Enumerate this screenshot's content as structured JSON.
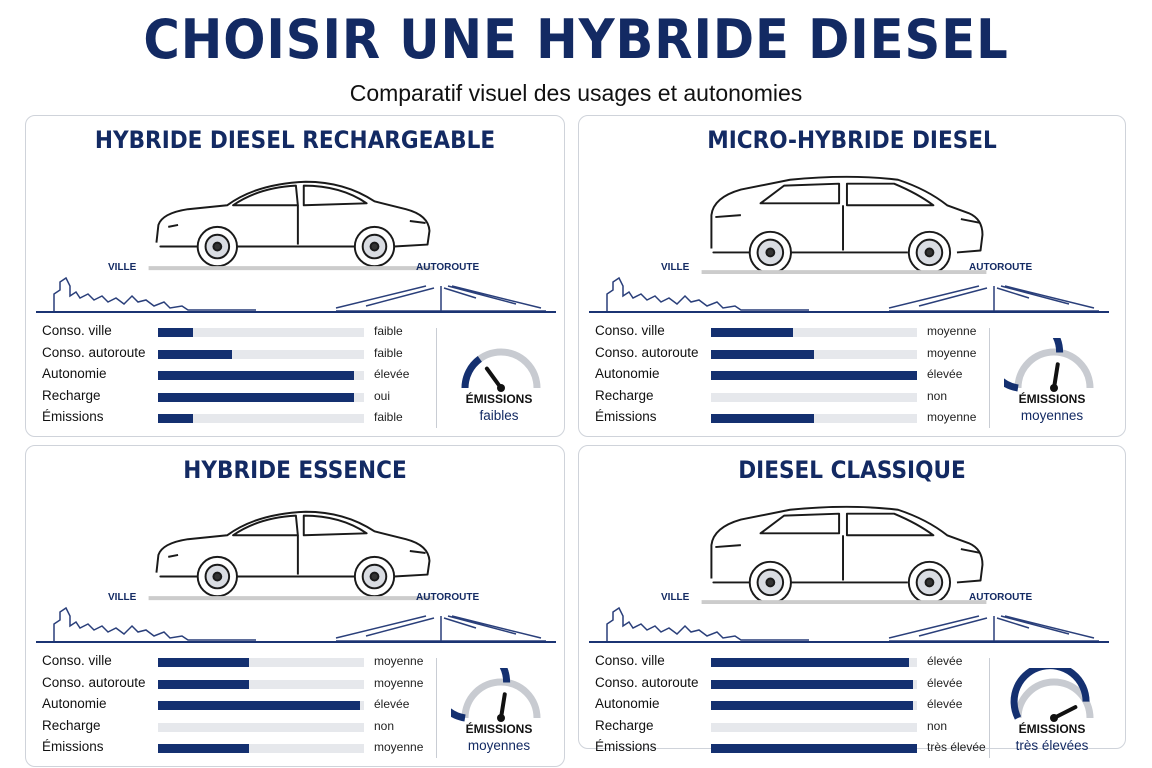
{
  "header": {
    "title": "CHOISIR UNE HYBRIDE DIESEL",
    "subtitle": "Comparatif visuel des usages et autonomies"
  },
  "colors": {
    "navy": "#143070",
    "track": "#e6e8ec",
    "gauge_gray": "#c8cbd1"
  },
  "cards": [
    {
      "title": "HYBRIDE DIESEL RECHARGEABLE",
      "car_type": "sedan",
      "city_label": "VILLE",
      "highway_label": "AUTOROUTE",
      "metrics": [
        {
          "label": "Conso. ville",
          "value": "faible",
          "level": 0.17
        },
        {
          "label": "Conso. autoroute",
          "value": "faible",
          "level": 0.36
        },
        {
          "label": "Autonomie",
          "value": "élevée",
          "level": 0.95
        },
        {
          "label": "Recharge",
          "value": "oui",
          "level": 0.95
        },
        {
          "label": "Émissions",
          "value": "faible",
          "level": 0.17
        }
      ],
      "emissions_title": "ÉMISSIONS",
      "emissions_level_text": "faibles",
      "emissions_level": 0.3
    },
    {
      "title": "MICRO-HYBRIDE DIESEL",
      "car_type": "suv",
      "city_label": "VILLE",
      "highway_label": "AUTOROUTE",
      "metrics": [
        {
          "label": "Conso. ville",
          "value": "moyenne",
          "level": 0.4
        },
        {
          "label": "Conso. autoroute",
          "value": "moyenne",
          "level": 0.5
        },
        {
          "label": "Autonomie",
          "value": "élevée",
          "level": 1.0
        },
        {
          "label": "Recharge",
          "value": "non",
          "level": 0.0
        },
        {
          "label": "Émissions",
          "value": "moyenne",
          "level": 0.5
        }
      ],
      "emissions_title": "ÉMISSIONS",
      "emissions_level_text": "moyennes",
      "emissions_level": 0.55
    },
    {
      "title": "HYBRIDE ESSENCE",
      "car_type": "sedan",
      "city_label": "VILLE",
      "highway_label": "AUTOROUTE",
      "metrics": [
        {
          "label": "Conso. ville",
          "value": "moyenne",
          "level": 0.44
        },
        {
          "label": "Conso. autoroute",
          "value": "moyenne",
          "level": 0.44
        },
        {
          "label": "Autonomie",
          "value": "élevée",
          "level": 0.98
        },
        {
          "label": "Recharge",
          "value": "non",
          "level": 0.0
        },
        {
          "label": "Émissions",
          "value": "moyenne",
          "level": 0.44
        }
      ],
      "emissions_title": "ÉMISSIONS",
      "emissions_level_text": "moyennes",
      "emissions_level": 0.55
    },
    {
      "title": "DIESEL CLASSIQUE",
      "car_type": "suv",
      "city_label": "VILLE",
      "highway_label": "AUTOROUTE",
      "metrics": [
        {
          "label": "Conso. ville",
          "value": "élevée",
          "level": 0.96
        },
        {
          "label": "Conso. autoroute",
          "value": "élevée",
          "level": 0.98
        },
        {
          "label": "Autonomie",
          "value": "élevée",
          "level": 0.98
        },
        {
          "label": "Recharge",
          "value": "non",
          "level": 0.0
        },
        {
          "label": "Émissions",
          "value": "très élevée",
          "level": 1.0
        }
      ],
      "emissions_title": "ÉMISSIONS",
      "emissions_level_text": "très élevées",
      "emissions_level": 0.85
    }
  ]
}
